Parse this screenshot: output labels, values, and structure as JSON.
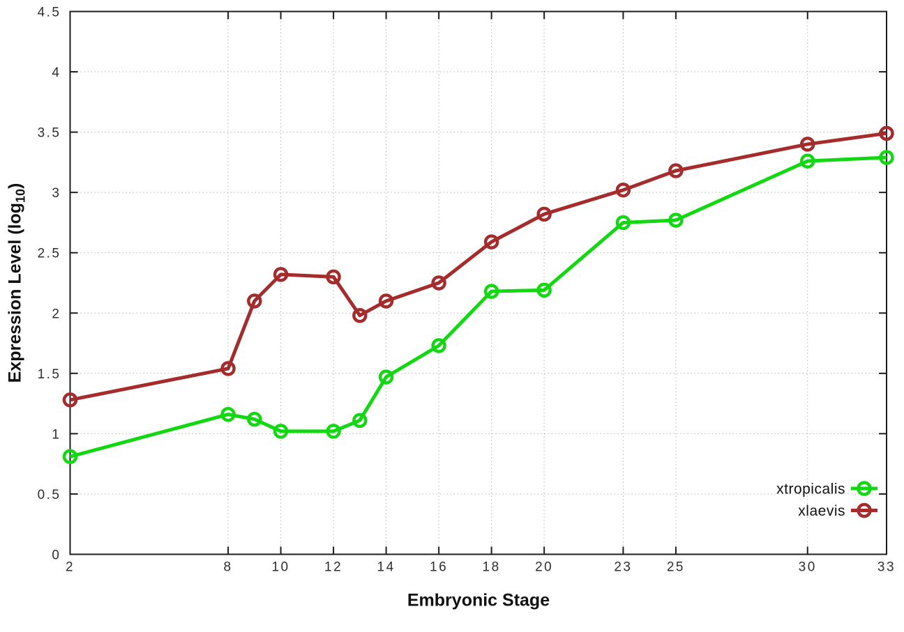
{
  "page": {
    "background": "#ffffff"
  },
  "chart_data": {
    "type": "line",
    "title": "",
    "xlabel": "Embryonic Stage",
    "ylabel": {
      "main": "Expression Level (log",
      "sub": "10",
      "end": ")"
    },
    "xlim": [
      2,
      33
    ],
    "ylim": [
      0,
      4.5
    ],
    "xticks": [
      2,
      8,
      10,
      12,
      14,
      16,
      18,
      20,
      23,
      25,
      30,
      33
    ],
    "yticks": [
      0,
      0.5,
      1,
      1.5,
      2,
      2.5,
      3,
      3.5,
      4,
      4.5
    ],
    "grid": true,
    "grid_style": "dotted",
    "legend_position": "inside-bottom-right",
    "marker": "open-circle",
    "x": [
      2,
      8,
      9,
      10,
      12,
      13,
      14,
      16,
      18,
      20,
      23,
      25,
      30,
      33
    ],
    "series": [
      {
        "name": "xtropicalis",
        "color": "#12D812",
        "values": [
          0.81,
          1.16,
          1.12,
          1.02,
          1.02,
          1.11,
          1.47,
          1.73,
          2.18,
          2.19,
          2.75,
          2.77,
          3.26,
          3.29
        ]
      },
      {
        "name": "xlaevis",
        "color": "#A52C2C",
        "values": [
          1.28,
          1.54,
          2.1,
          2.32,
          2.3,
          1.98,
          2.1,
          2.25,
          2.59,
          2.82,
          3.02,
          3.18,
          3.4,
          3.49
        ]
      }
    ]
  }
}
